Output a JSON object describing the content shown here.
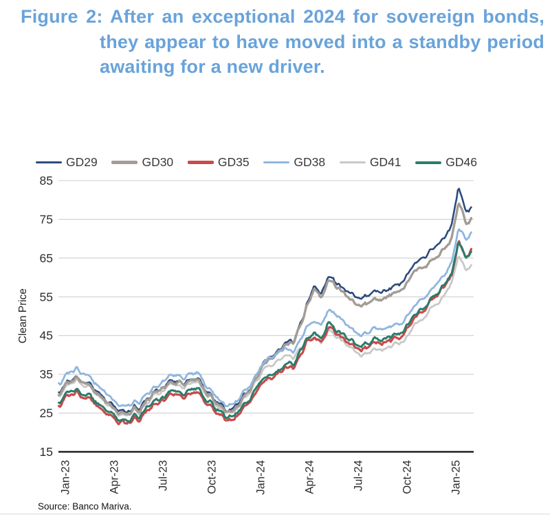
{
  "figure": {
    "title": "Figure 2: After an exceptional 2024 for sovereign bonds, they appear to have moved into a standby period awaiting for a new driver.",
    "title_color": "#69A3DA",
    "source": "Source: Banco Mariva."
  },
  "chart_data": {
    "type": "line",
    "title": "",
    "xlabel": "",
    "ylabel": "Clean Price",
    "ylim": [
      15,
      85
    ],
    "y_ticks": [
      85,
      75,
      65,
      55,
      45,
      35,
      25,
      15
    ],
    "x_tick_labels": [
      "Jan-23",
      "Apr-23",
      "Jul-23",
      "Oct-23",
      "Jan-24",
      "Apr-24",
      "Jul-24",
      "Oct-24",
      "Jan-25"
    ],
    "x_tick_months": [
      0,
      3,
      6,
      9,
      12,
      15,
      18,
      21,
      24
    ],
    "x_domain_months": [
      -0.4,
      25.0
    ],
    "grid": "horizontal",
    "legend_position": "top-left",
    "axis_color": "#1f1f1f",
    "grid_color": "#cfcfcf",
    "tick_text_color": "#2e2e2e",
    "keypoint_months": [
      -0.4,
      0.7,
      1.5,
      2.2,
      3.0,
      3.8,
      4.5,
      5.5,
      6.4,
      7.2,
      8.0,
      8.8,
      9.5,
      10.2,
      11.0,
      11.9,
      12.6,
      13.3,
      14.0,
      14.7,
      15.3,
      15.7,
      16.2,
      16.8,
      17.5,
      18.2,
      19.0,
      19.8,
      20.6,
      21.3,
      22.0,
      22.7,
      23.3,
      23.8,
      24.15,
      24.55,
      24.8,
      25.0
    ],
    "series": [
      {
        "name": "GD29",
        "color": "#2C4A7E",
        "line_width": 2.6,
        "swatch_height": 3.5,
        "values": [
          30.5,
          35.2,
          32.0,
          30.0,
          26.3,
          25.5,
          26.5,
          30.0,
          33.8,
          33.0,
          33.5,
          31.0,
          27.0,
          25.8,
          29.0,
          36.0,
          40.0,
          41.5,
          44.0,
          51.0,
          58.5,
          55.5,
          59.5,
          58.5,
          56.0,
          55.0,
          55.5,
          57.0,
          59.0,
          62.0,
          65.5,
          67.5,
          70.5,
          74.5,
          82.5,
          78.0,
          77.5,
          78.5
        ]
      },
      {
        "name": "GD30",
        "color": "#A39D95",
        "line_width": 3.4,
        "swatch_height": 5,
        "values": [
          30.0,
          34.8,
          31.6,
          29.6,
          25.8,
          25.0,
          26.0,
          29.5,
          33.4,
          32.6,
          33.2,
          30.6,
          26.6,
          25.4,
          28.5,
          35.5,
          39.5,
          41.0,
          43.5,
          50.5,
          58.0,
          54.5,
          58.8,
          57.5,
          54.5,
          53.0,
          53.5,
          55.0,
          57.0,
          60.0,
          63.0,
          64.8,
          67.5,
          71.0,
          78.8,
          75.0,
          74.3,
          75.2
        ]
      },
      {
        "name": "GD35",
        "color": "#C94A4A",
        "line_width": 3.2,
        "swatch_height": 5,
        "values": [
          26.8,
          31.2,
          28.3,
          26.6,
          23.3,
          22.6,
          23.6,
          26.8,
          30.2,
          29.4,
          30.0,
          27.8,
          24.2,
          23.2,
          25.8,
          31.8,
          34.2,
          35.3,
          37.3,
          42.0,
          45.5,
          43.0,
          46.5,
          45.5,
          43.0,
          41.8,
          42.3,
          43.6,
          45.2,
          47.8,
          51.8,
          54.5,
          58.0,
          61.5,
          68.5,
          65.8,
          66.3,
          67.8
        ]
      },
      {
        "name": "GD38",
        "color": "#8FB6DE",
        "line_width": 2.8,
        "swatch_height": 3.5,
        "values": [
          32.8,
          37.2,
          33.8,
          31.8,
          27.8,
          27.0,
          28.0,
          31.0,
          35.3,
          34.3,
          34.8,
          32.3,
          27.8,
          27.0,
          29.8,
          36.3,
          39.8,
          40.5,
          41.5,
          46.0,
          49.8,
          47.5,
          51.0,
          50.0,
          47.3,
          45.5,
          46.0,
          47.3,
          48.5,
          51.0,
          54.8,
          57.5,
          61.0,
          64.5,
          72.0,
          70.3,
          70.8,
          71.6
        ]
      },
      {
        "name": "GD41",
        "color": "#C8C8C8",
        "line_width": 2.8,
        "swatch_height": 3.5,
        "values": [
          29.6,
          34.3,
          31.2,
          29.2,
          25.4,
          24.7,
          25.6,
          29.0,
          32.8,
          32.0,
          32.6,
          30.0,
          26.2,
          25.0,
          28.0,
          34.5,
          37.8,
          38.7,
          39.8,
          43.0,
          45.3,
          43.0,
          45.8,
          44.8,
          42.0,
          40.3,
          40.8,
          42.0,
          43.5,
          46.0,
          49.8,
          52.5,
          55.8,
          59.5,
          65.0,
          62.3,
          62.6,
          63.2
        ]
      },
      {
        "name": "GD46",
        "color": "#2A7C6C",
        "line_width": 3.0,
        "swatch_height": 4,
        "values": [
          27.8,
          32.0,
          29.0,
          27.3,
          24.0,
          23.3,
          24.3,
          27.6,
          31.0,
          30.2,
          30.8,
          28.6,
          25.0,
          24.0,
          26.6,
          32.6,
          35.2,
          36.2,
          38.2,
          43.0,
          46.5,
          44.0,
          47.4,
          46.4,
          43.8,
          42.6,
          43.2,
          44.5,
          46.0,
          48.6,
          52.4,
          55.0,
          58.4,
          61.8,
          68.7,
          65.6,
          66.0,
          67.0
        ]
      }
    ],
    "draw_order": [
      "GD29",
      "GD41",
      "GD30",
      "GD35",
      "GD46",
      "GD38"
    ]
  }
}
